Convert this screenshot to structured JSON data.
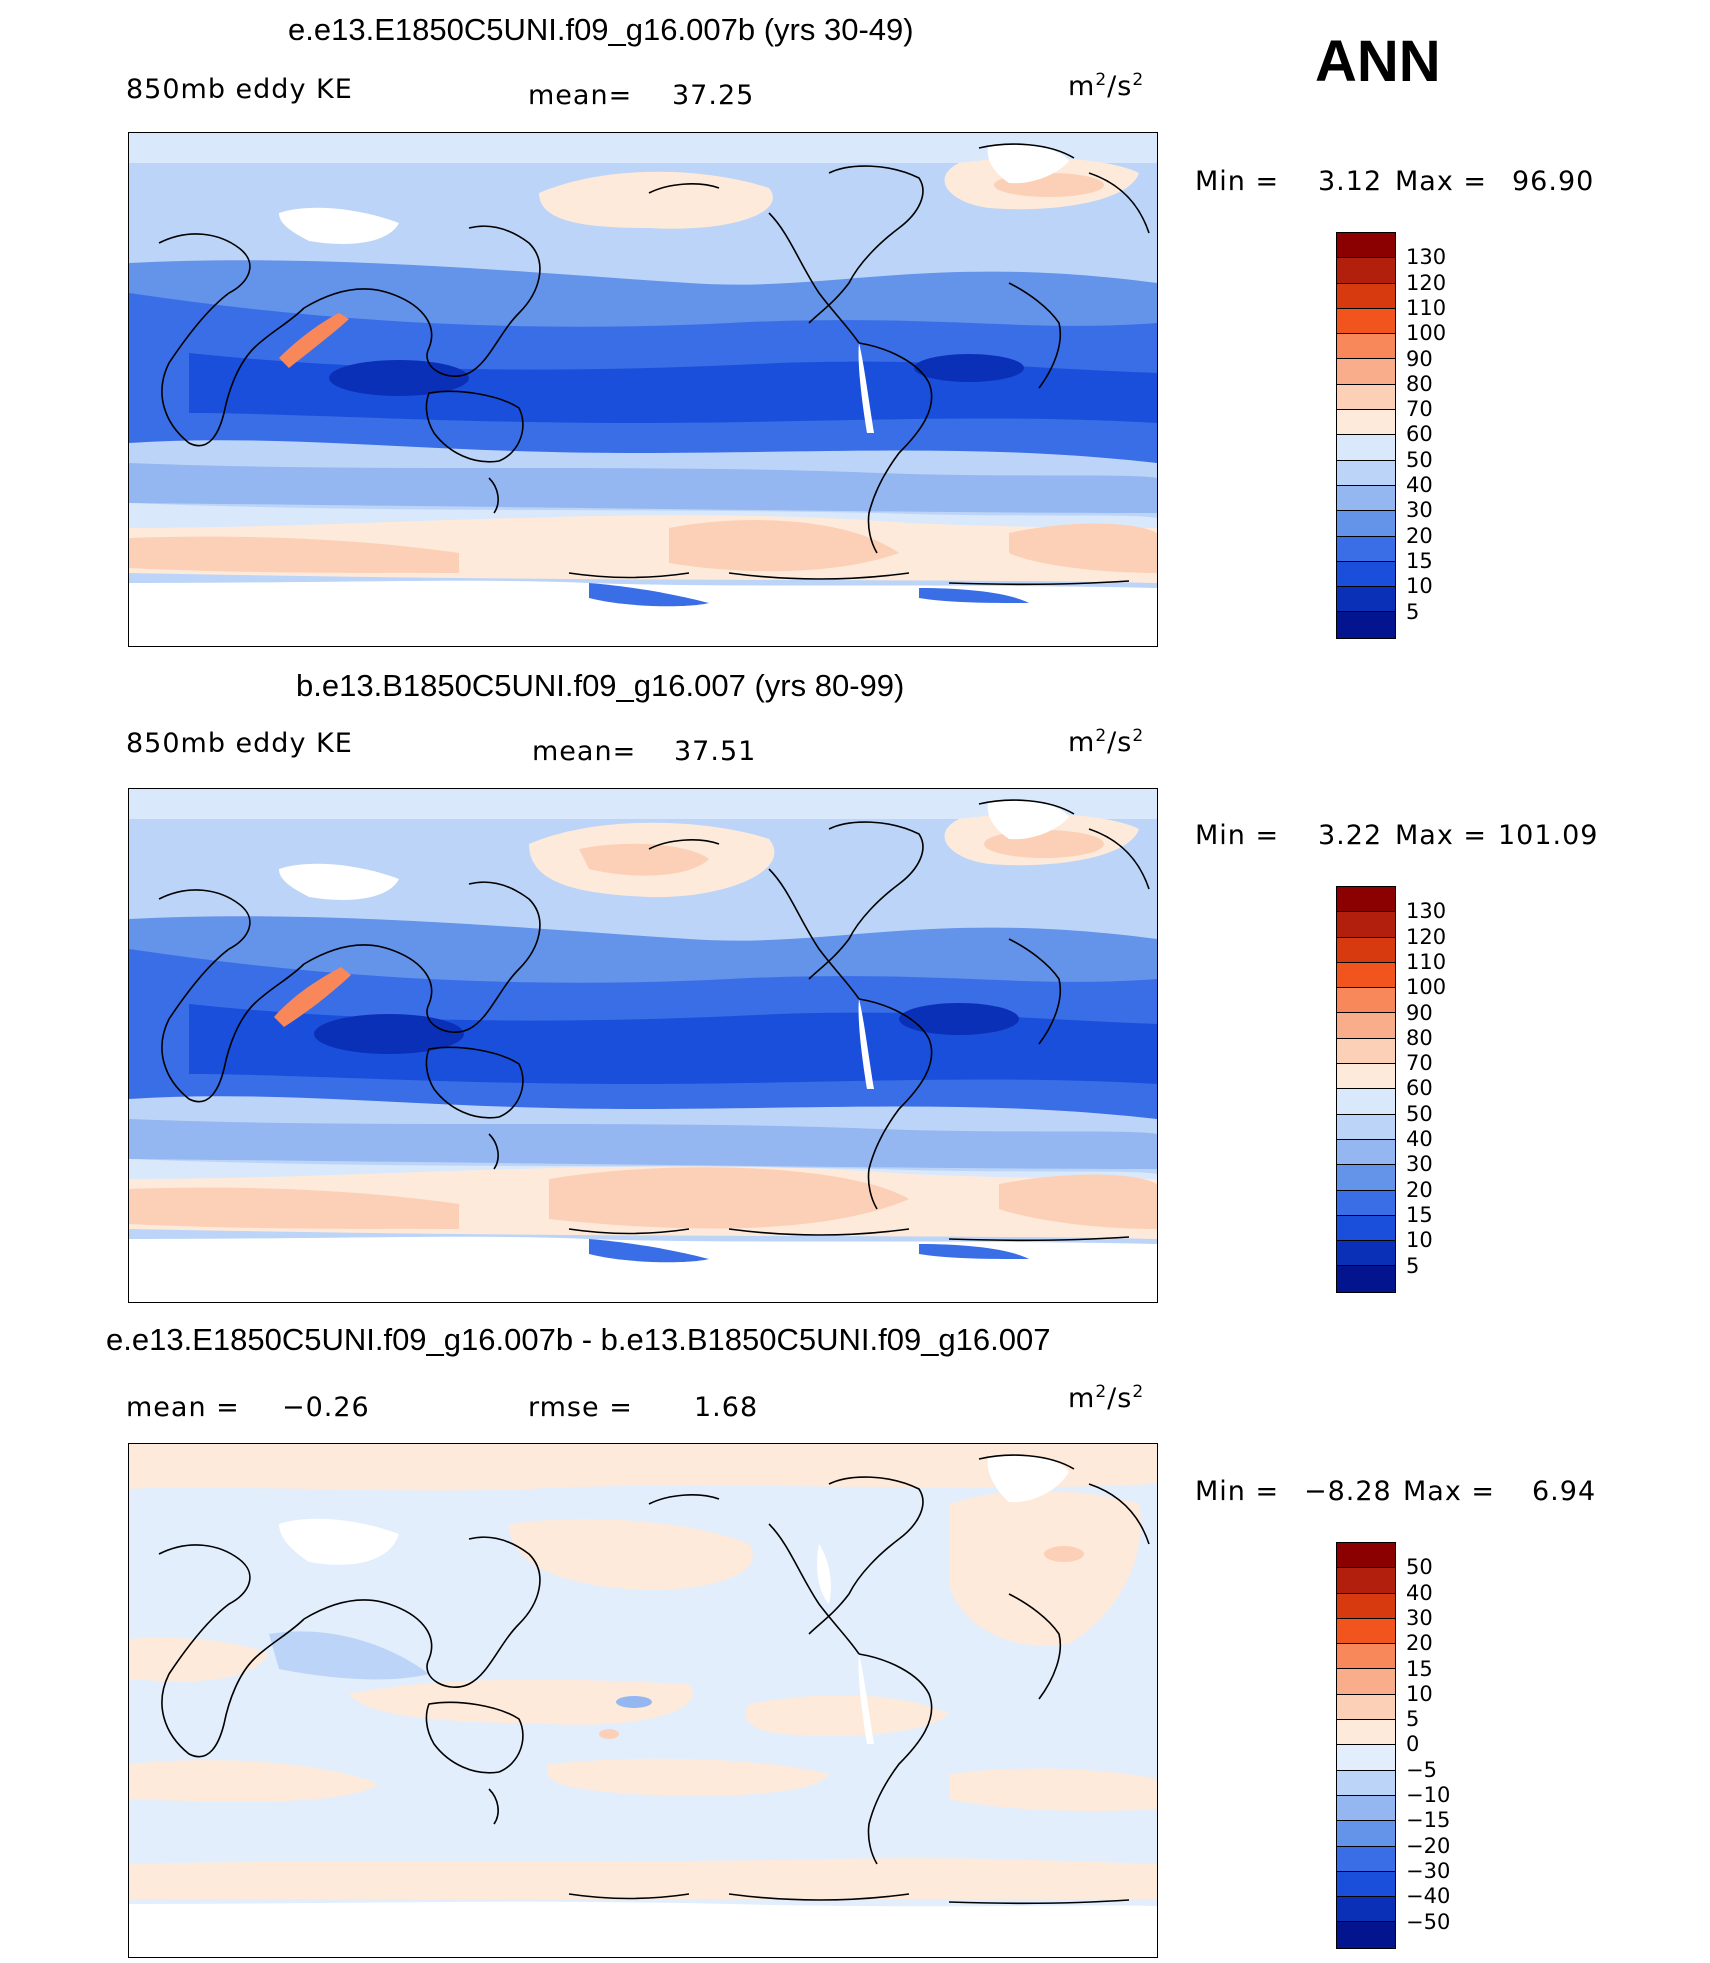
{
  "season": "ANN",
  "units_base": "m",
  "units_base2": "/s",
  "units_sup": "2",
  "panels": [
    {
      "title": "e.e13.E1850C5UNI.f09_g16.007b (yrs 30-49)",
      "field": "850mb eddy KE",
      "stat_label": "mean=",
      "stat_value": "37.25",
      "min_label": "Min =",
      "min_value": "3.12",
      "max_label": "Max =",
      "max_value": "96.90",
      "colorbar_labels": [
        "130",
        "120",
        "110",
        "100",
        "90",
        "80",
        "70",
        "60",
        "50",
        "40",
        "30",
        "20",
        "15",
        "10",
        "5"
      ],
      "colorbar_colors": [
        "#8b0000",
        "#b2200d",
        "#d83a10",
        "#f2541d",
        "#f8885a",
        "#f9ad8a",
        "#fcd0b6",
        "#fdeadb",
        "#d9e9fb",
        "#bcd4f8",
        "#94b7f2",
        "#6493ea",
        "#3a6ee6",
        "#1a4fdc",
        "#0b30b8",
        "#02158e"
      ]
    },
    {
      "title": "b.e13.B1850C5UNI.f09_g16.007 (yrs 80-99)",
      "field": "850mb eddy KE",
      "stat_label": "mean=",
      "stat_value": "37.51",
      "min_label": "Min =",
      "min_value": "3.22",
      "max_label": "Max =",
      "max_value": "101.09",
      "colorbar_labels": [
        "130",
        "120",
        "110",
        "100",
        "90",
        "80",
        "70",
        "60",
        "50",
        "40",
        "30",
        "20",
        "15",
        "10",
        "5"
      ],
      "colorbar_colors": [
        "#8b0000",
        "#b2200d",
        "#d83a10",
        "#f2541d",
        "#f8885a",
        "#f9ad8a",
        "#fcd0b6",
        "#fdeadb",
        "#d9e9fb",
        "#bcd4f8",
        "#94b7f2",
        "#6493ea",
        "#3a6ee6",
        "#1a4fdc",
        "#0b30b8",
        "#02158e"
      ]
    },
    {
      "title": "e.e13.E1850C5UNI.f09_g16.007b - b.e13.B1850C5UNI.f09_g16.007",
      "field": "mean =",
      "field_value": "−0.26",
      "stat_label": "rmse =",
      "stat_value": "1.68",
      "min_label": "Min =",
      "min_value": "−8.28",
      "max_label": "Max =",
      "max_value": "6.94",
      "colorbar_labels": [
        "50",
        "40",
        "30",
        "20",
        "15",
        "10",
        "5",
        "0",
        "−5",
        "−10",
        "−15",
        "−20",
        "−30",
        "−40",
        "−50"
      ],
      "colorbar_colors": [
        "#8b0000",
        "#b2200d",
        "#d83a10",
        "#f2541d",
        "#f8885a",
        "#f9ad8a",
        "#fcd0b6",
        "#fdeadb",
        "#e2eefc",
        "#bcd4f8",
        "#94b7f2",
        "#6493ea",
        "#3a6ee6",
        "#1a4fdc",
        "#0b30b8",
        "#02158e"
      ]
    }
  ]
}
